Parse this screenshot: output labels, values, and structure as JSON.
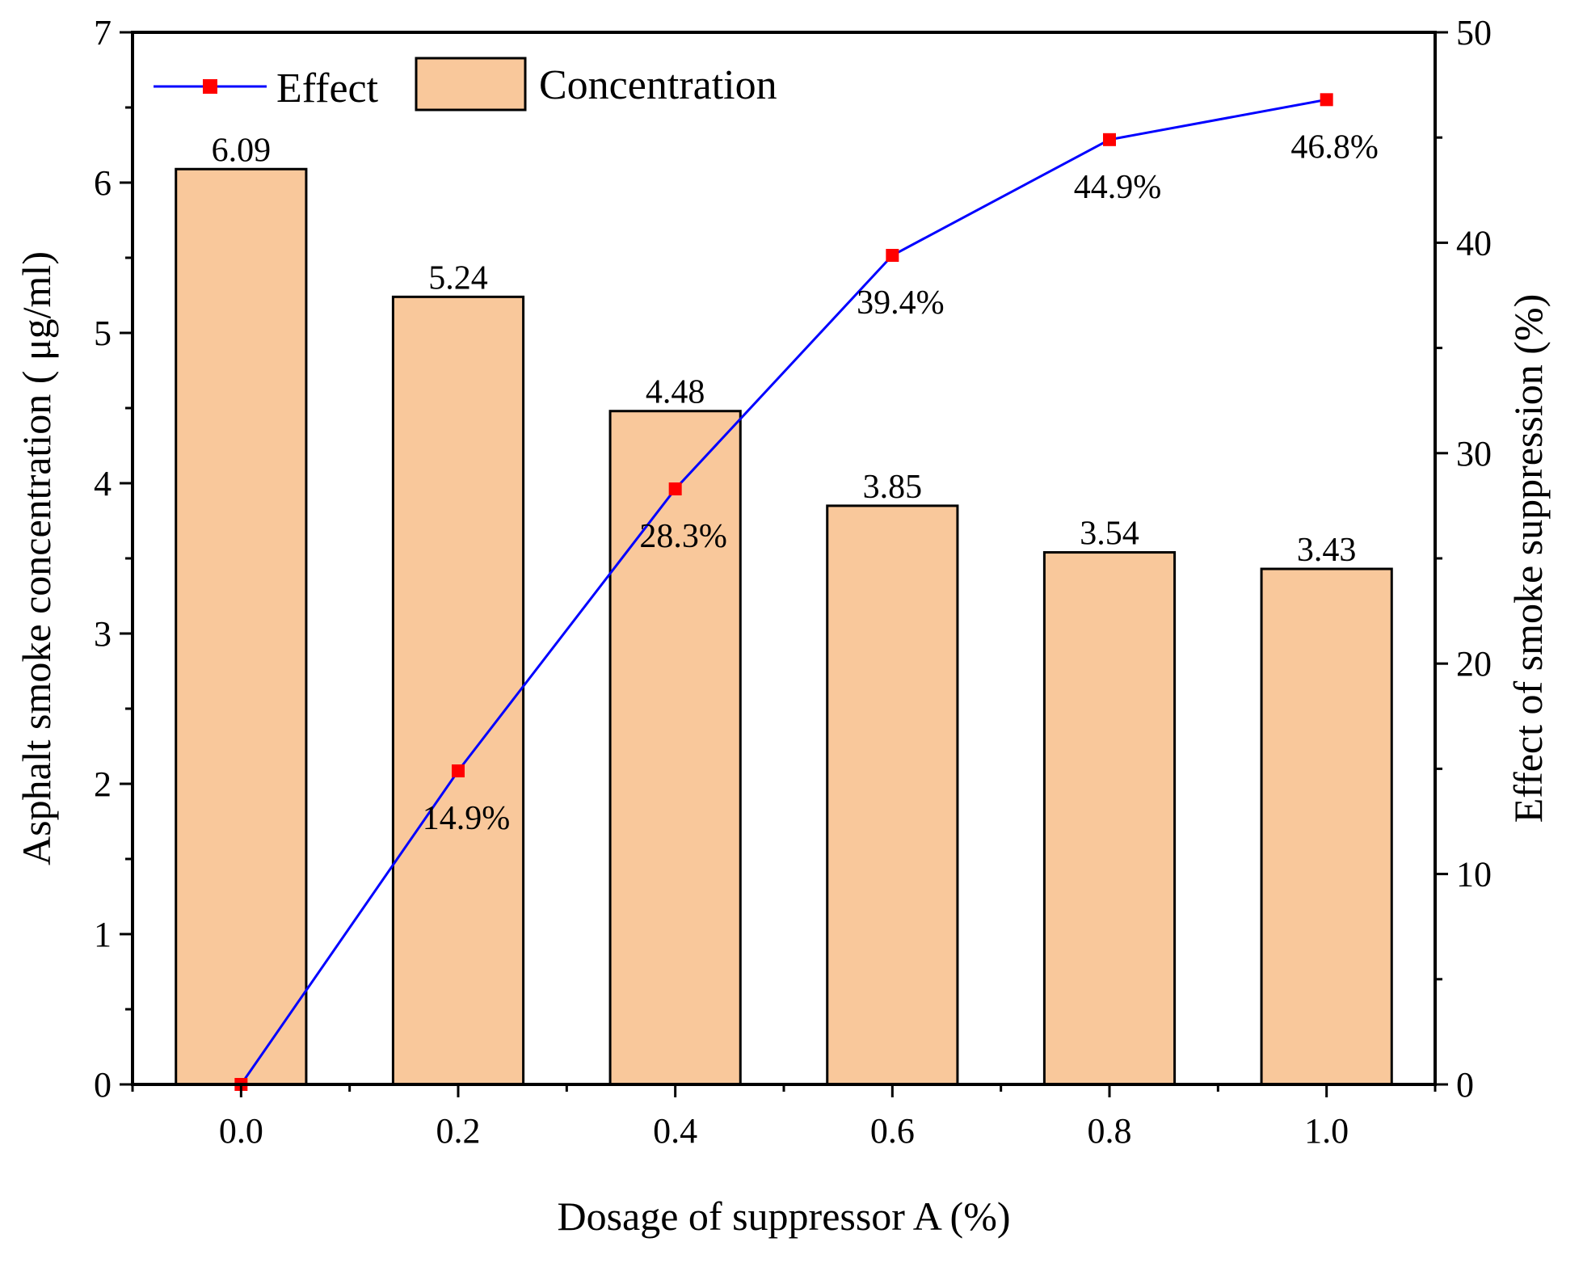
{
  "chart_data": {
    "type": "bar+line",
    "categories": [
      "0.0",
      "0.2",
      "0.4",
      "0.6",
      "0.8",
      "1.0"
    ],
    "x": [
      0.0,
      0.2,
      0.4,
      0.6,
      0.8,
      1.0
    ],
    "series": [
      {
        "name": "Concentration",
        "type": "bar",
        "axis": "left",
        "values": [
          6.09,
          5.24,
          4.48,
          3.85,
          3.54,
          3.43
        ],
        "labels": [
          "6.09",
          "5.24",
          "4.48",
          "3.85",
          "3.54",
          "3.43"
        ],
        "color": "#F9C89B"
      },
      {
        "name": "Effect",
        "type": "line",
        "axis": "right",
        "values": [
          0,
          14.9,
          28.3,
          39.4,
          44.9,
          46.8
        ],
        "labels": [
          "",
          "14.9%",
          "28.3%",
          "39.4%",
          "44.9%",
          "46.8%"
        ],
        "line_color": "#0000FF",
        "marker_color": "#FF0000"
      }
    ],
    "xlabel": "Dosage of suppressor A (%)",
    "ylabel_left": "Asphalt smoke concentration ( μg/ml)",
    "ylabel_right": "Effect of smoke suppression (%)",
    "xlim": [
      -0.1,
      1.1
    ],
    "ylim_left": [
      0,
      7
    ],
    "ylim_right": [
      0,
      50
    ],
    "yticks_left": [
      "0",
      "1",
      "2",
      "3",
      "4",
      "5",
      "6",
      "7"
    ],
    "yticks_right": [
      "0",
      "10",
      "20",
      "30",
      "40",
      "50"
    ],
    "legend": {
      "placement": "top-left",
      "items": [
        "Effect",
        "Concentration"
      ]
    }
  }
}
